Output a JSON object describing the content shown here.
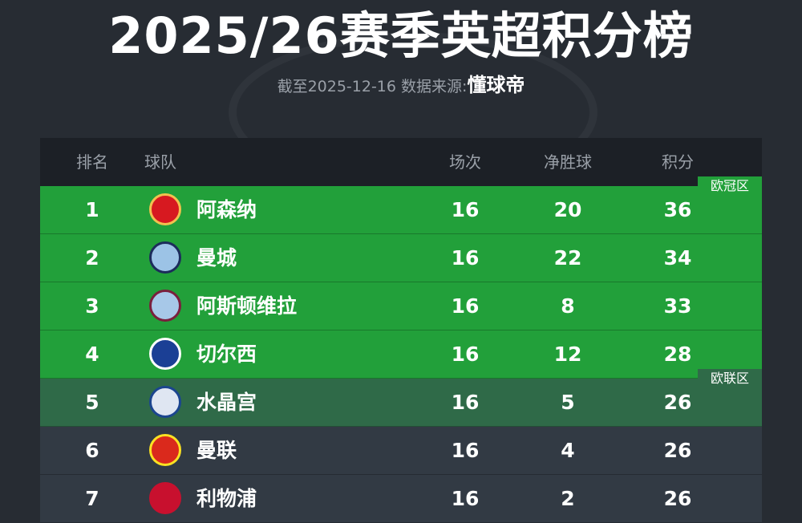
{
  "title": "2025/26赛季英超积分榜",
  "subtitle": {
    "prefix": "截至2025-12-16 数据来源:",
    "source": "懂球帝"
  },
  "headers": {
    "rank": "排名",
    "team": "球队",
    "played": "场次",
    "gd": "净胜球",
    "points": "积分"
  },
  "zones": {
    "ucl": "欧冠区",
    "uel": "欧联区"
  },
  "colors": {
    "ucl": "#22a03a",
    "uel": "#2f6a48",
    "normal": "#323a44"
  },
  "rows": [
    {
      "rank": "1",
      "team": "阿森纳",
      "played": "16",
      "gd": "20",
      "points": "36",
      "logo": "arsenal-crest-icon"
    },
    {
      "rank": "2",
      "team": "曼城",
      "played": "16",
      "gd": "22",
      "points": "34",
      "logo": "man-city-crest-icon"
    },
    {
      "rank": "3",
      "team": "阿斯顿维拉",
      "played": "16",
      "gd": "8",
      "points": "33",
      "logo": "aston-villa-crest-icon"
    },
    {
      "rank": "4",
      "team": "切尔西",
      "played": "16",
      "gd": "12",
      "points": "28",
      "logo": "chelsea-crest-icon"
    },
    {
      "rank": "5",
      "team": "水晶宫",
      "played": "16",
      "gd": "5",
      "points": "26",
      "logo": "crystal-palace-crest-icon"
    },
    {
      "rank": "6",
      "team": "曼联",
      "played": "16",
      "gd": "4",
      "points": "26",
      "logo": "man-utd-crest-icon"
    },
    {
      "rank": "7",
      "team": "利物浦",
      "played": "16",
      "gd": "2",
      "points": "26",
      "logo": "liverpool-crest-icon"
    }
  ]
}
